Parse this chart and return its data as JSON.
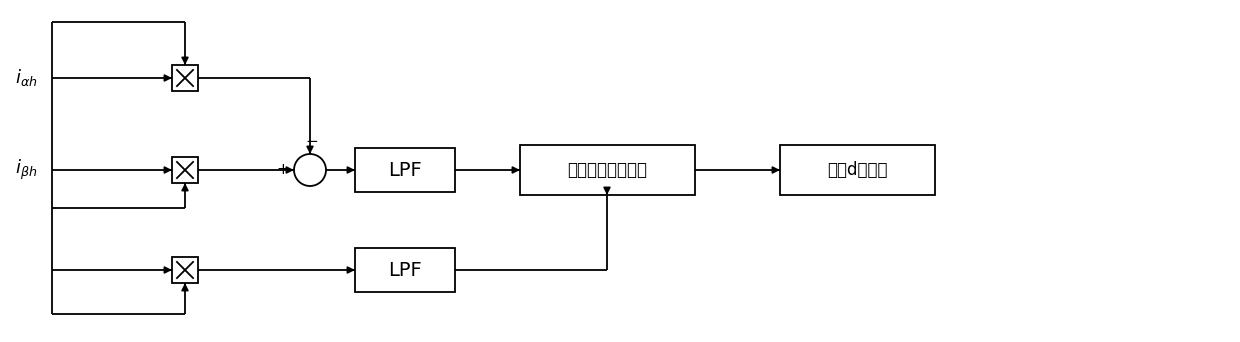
{
  "bg_color": "#ffffff",
  "line_color": "#000000",
  "fig_width": 12.4,
  "fig_height": 3.42,
  "label_ialpha": "$i_{\\alpha h}$",
  "label_ibeta": "$i_{\\beta h}$",
  "label_lpf1": "LPF",
  "label_lpf2": "LPF",
  "label_block3": "分区判断、反正切",
  "label_block4": "转子d轴位置",
  "minus_sign": "−",
  "plus_sign": "+"
}
